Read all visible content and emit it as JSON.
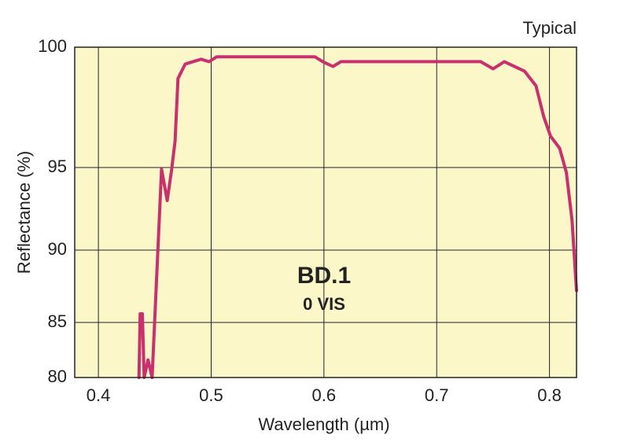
{
  "chart_data": {
    "type": "line",
    "title": "Typical",
    "annotations": [
      "BD.1",
      "0 VIS"
    ],
    "x_label": "Wavelength (µm)",
    "y_label": "Reflectance (%)",
    "xlim": [
      0.379,
      0.824
    ],
    "ylim": [
      80,
      100
    ],
    "xticks": [
      0.4,
      0.5,
      0.6,
      0.7,
      0.8
    ],
    "yticks": [
      80,
      85,
      90,
      95,
      100
    ],
    "grid": true,
    "background": "#fcf7c8",
    "series": [
      {
        "name": "BD.1",
        "color": "#c8306e",
        "x": [
          0.436,
          0.437,
          0.439,
          0.4406,
          0.444,
          0.4476,
          0.456,
          0.461,
          0.465,
          0.468,
          0.4706,
          0.477,
          0.491,
          0.498,
          0.505,
          0.592,
          0.599,
          0.608,
          0.615,
          0.732,
          0.739,
          0.75,
          0.76,
          0.778,
          0.788,
          0.795,
          0.801,
          0.809,
          0.815,
          0.82,
          0.824
        ],
        "values": [
          80,
          85.6,
          85.6,
          80,
          81.6,
          80,
          94.9,
          93.0,
          94.9,
          96.1,
          98.7,
          99.3,
          99.5,
          99.4,
          99.6,
          99.6,
          99.4,
          99.2,
          99.4,
          99.4,
          99.4,
          99.1,
          99.4,
          99.0,
          98.4,
          97.1,
          96.3,
          95.8,
          94.7,
          91.8,
          87.2
        ]
      }
    ]
  }
}
